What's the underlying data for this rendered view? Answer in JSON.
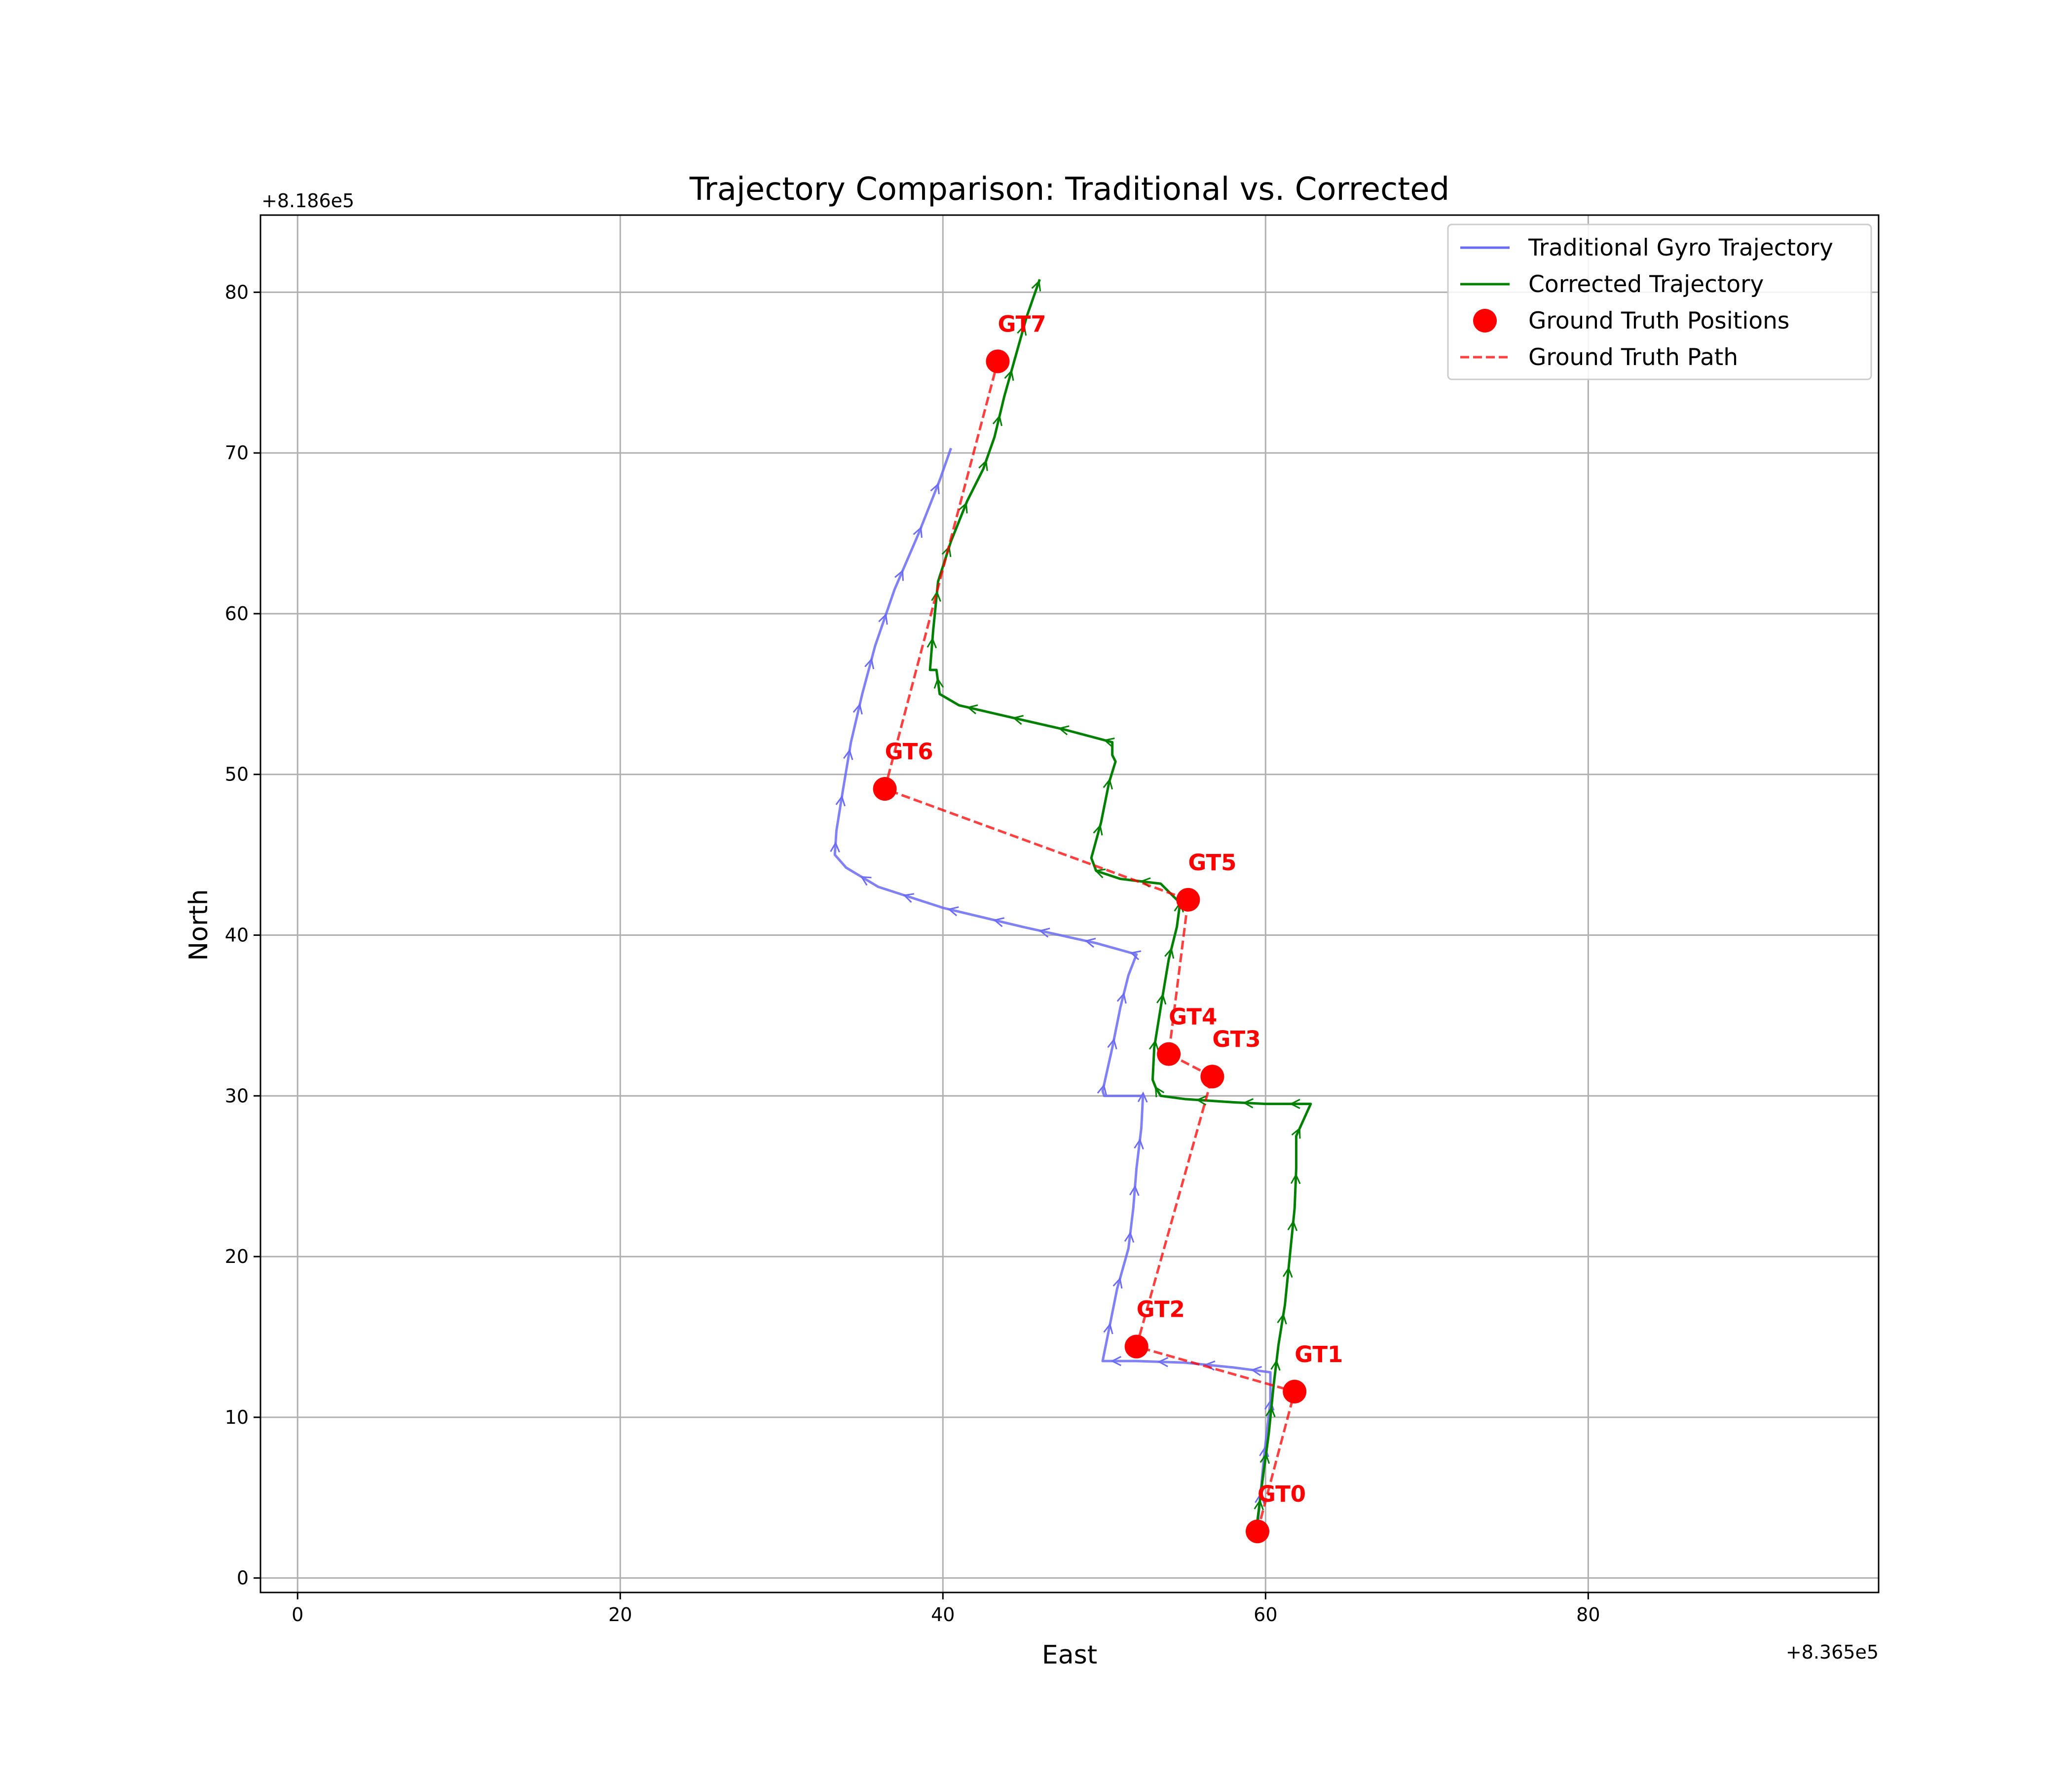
{
  "chart_data": {
    "type": "line",
    "title": "Trajectory Comparison: Traditional vs. Corrected",
    "xlabel": "East",
    "ylabel": "North",
    "x_offset_label": "+8.365e5",
    "y_offset_label": "+8.186e5",
    "xlim": [
      -2.3,
      98
    ],
    "ylim": [
      -0.9,
      84.8
    ],
    "x_ticks": [
      0,
      20,
      40,
      60,
      80
    ],
    "y_ticks": [
      0,
      10,
      20,
      30,
      40,
      50,
      60,
      70,
      80
    ],
    "grid": true,
    "legend_position": "upper right",
    "series": [
      {
        "name": "Traditional Gyro Trajectory",
        "style": "line-with-arrows",
        "color": "#6b6bf5",
        "points": [
          [
            59.5,
            3.2
          ],
          [
            59.9,
            7.5
          ],
          [
            60.3,
            11.0
          ],
          [
            60.3,
            12.8
          ],
          [
            58.0,
            13.1
          ],
          [
            55.0,
            13.4
          ],
          [
            52.0,
            13.5
          ],
          [
            49.9,
            13.5
          ],
          [
            50.3,
            15.5
          ],
          [
            50.8,
            18.0
          ],
          [
            51.5,
            20.5
          ],
          [
            51.8,
            23.0
          ],
          [
            52.0,
            25.5
          ],
          [
            52.3,
            28.0
          ],
          [
            52.4,
            30.0
          ],
          [
            51.5,
            30.0
          ],
          [
            50.0,
            30.0
          ],
          [
            49.9,
            30.3
          ],
          [
            50.5,
            33.0
          ],
          [
            51.0,
            35.5
          ],
          [
            51.5,
            37.5
          ],
          [
            52.0,
            38.8
          ],
          [
            49.5,
            39.5
          ],
          [
            45.0,
            40.5
          ],
          [
            40.0,
            41.7
          ],
          [
            36.0,
            43.0
          ],
          [
            34.0,
            44.2
          ],
          [
            33.3,
            45.0
          ],
          [
            33.4,
            46.5
          ],
          [
            33.8,
            49.0
          ],
          [
            34.3,
            52.0
          ],
          [
            35.0,
            55.0
          ],
          [
            35.8,
            58.0
          ],
          [
            37.0,
            61.5
          ],
          [
            38.5,
            65.0
          ],
          [
            39.8,
            68.3
          ],
          [
            40.5,
            70.3
          ]
        ]
      },
      {
        "name": "Corrected Trajectory",
        "style": "line-with-arrows",
        "color": "#008000",
        "points": [
          [
            59.4,
            2.8
          ],
          [
            59.8,
            6.0
          ],
          [
            60.2,
            9.0
          ],
          [
            60.5,
            12.0
          ],
          [
            60.8,
            14.5
          ],
          [
            61.2,
            17.0
          ],
          [
            61.5,
            20.0
          ],
          [
            61.8,
            23.0
          ],
          [
            61.9,
            25.5
          ],
          [
            61.9,
            27.5
          ],
          [
            62.8,
            29.5
          ],
          [
            61.5,
            29.5
          ],
          [
            60.0,
            29.5
          ],
          [
            58.0,
            29.6
          ],
          [
            55.0,
            29.8
          ],
          [
            53.5,
            30.0
          ],
          [
            53.2,
            30.5
          ],
          [
            53.0,
            31.0
          ],
          [
            53.1,
            33.0
          ],
          [
            53.5,
            35.5
          ],
          [
            54.0,
            38.5
          ],
          [
            54.5,
            40.5
          ],
          [
            54.7,
            42.0
          ],
          [
            53.5,
            43.2
          ],
          [
            51.0,
            43.5
          ],
          [
            49.5,
            44.0
          ],
          [
            49.2,
            44.8
          ],
          [
            49.8,
            47.0
          ],
          [
            50.3,
            49.5
          ],
          [
            50.7,
            50.8
          ],
          [
            50.5,
            51.2
          ],
          [
            50.5,
            52.0
          ],
          [
            47.5,
            52.8
          ],
          [
            44.0,
            53.6
          ],
          [
            41.0,
            54.3
          ],
          [
            39.8,
            55.0
          ],
          [
            39.6,
            56.5
          ],
          [
            39.2,
            56.5
          ],
          [
            39.4,
            59.0
          ],
          [
            39.7,
            62.0
          ],
          [
            40.5,
            64.5
          ],
          [
            41.5,
            67.0
          ],
          [
            42.5,
            69.0
          ],
          [
            43.2,
            71.0
          ],
          [
            43.8,
            73.5
          ],
          [
            44.5,
            76.0
          ],
          [
            45.2,
            78.5
          ],
          [
            46.0,
            80.8
          ]
        ]
      },
      {
        "name": "Ground Truth Positions",
        "style": "markers",
        "color": "#ff0000",
        "labels": [
          "GT0",
          "GT1",
          "GT2",
          "GT3",
          "GT4",
          "GT5",
          "GT6",
          "GT7"
        ],
        "points": [
          [
            59.5,
            2.9
          ],
          [
            61.8,
            11.6
          ],
          [
            52.0,
            14.4
          ],
          [
            56.7,
            31.2
          ],
          [
            54.0,
            32.6
          ],
          [
            55.2,
            42.2
          ],
          [
            36.4,
            49.1
          ],
          [
            43.4,
            75.7
          ]
        ]
      },
      {
        "name": "Ground Truth Path",
        "style": "dashed",
        "color": "#ff0000",
        "points": [
          [
            59.5,
            2.9
          ],
          [
            61.8,
            11.6
          ],
          [
            52.0,
            14.4
          ],
          [
            56.7,
            31.2
          ],
          [
            54.0,
            32.6
          ],
          [
            55.2,
            42.2
          ],
          [
            36.4,
            49.1
          ],
          [
            43.4,
            75.7
          ]
        ]
      }
    ]
  }
}
